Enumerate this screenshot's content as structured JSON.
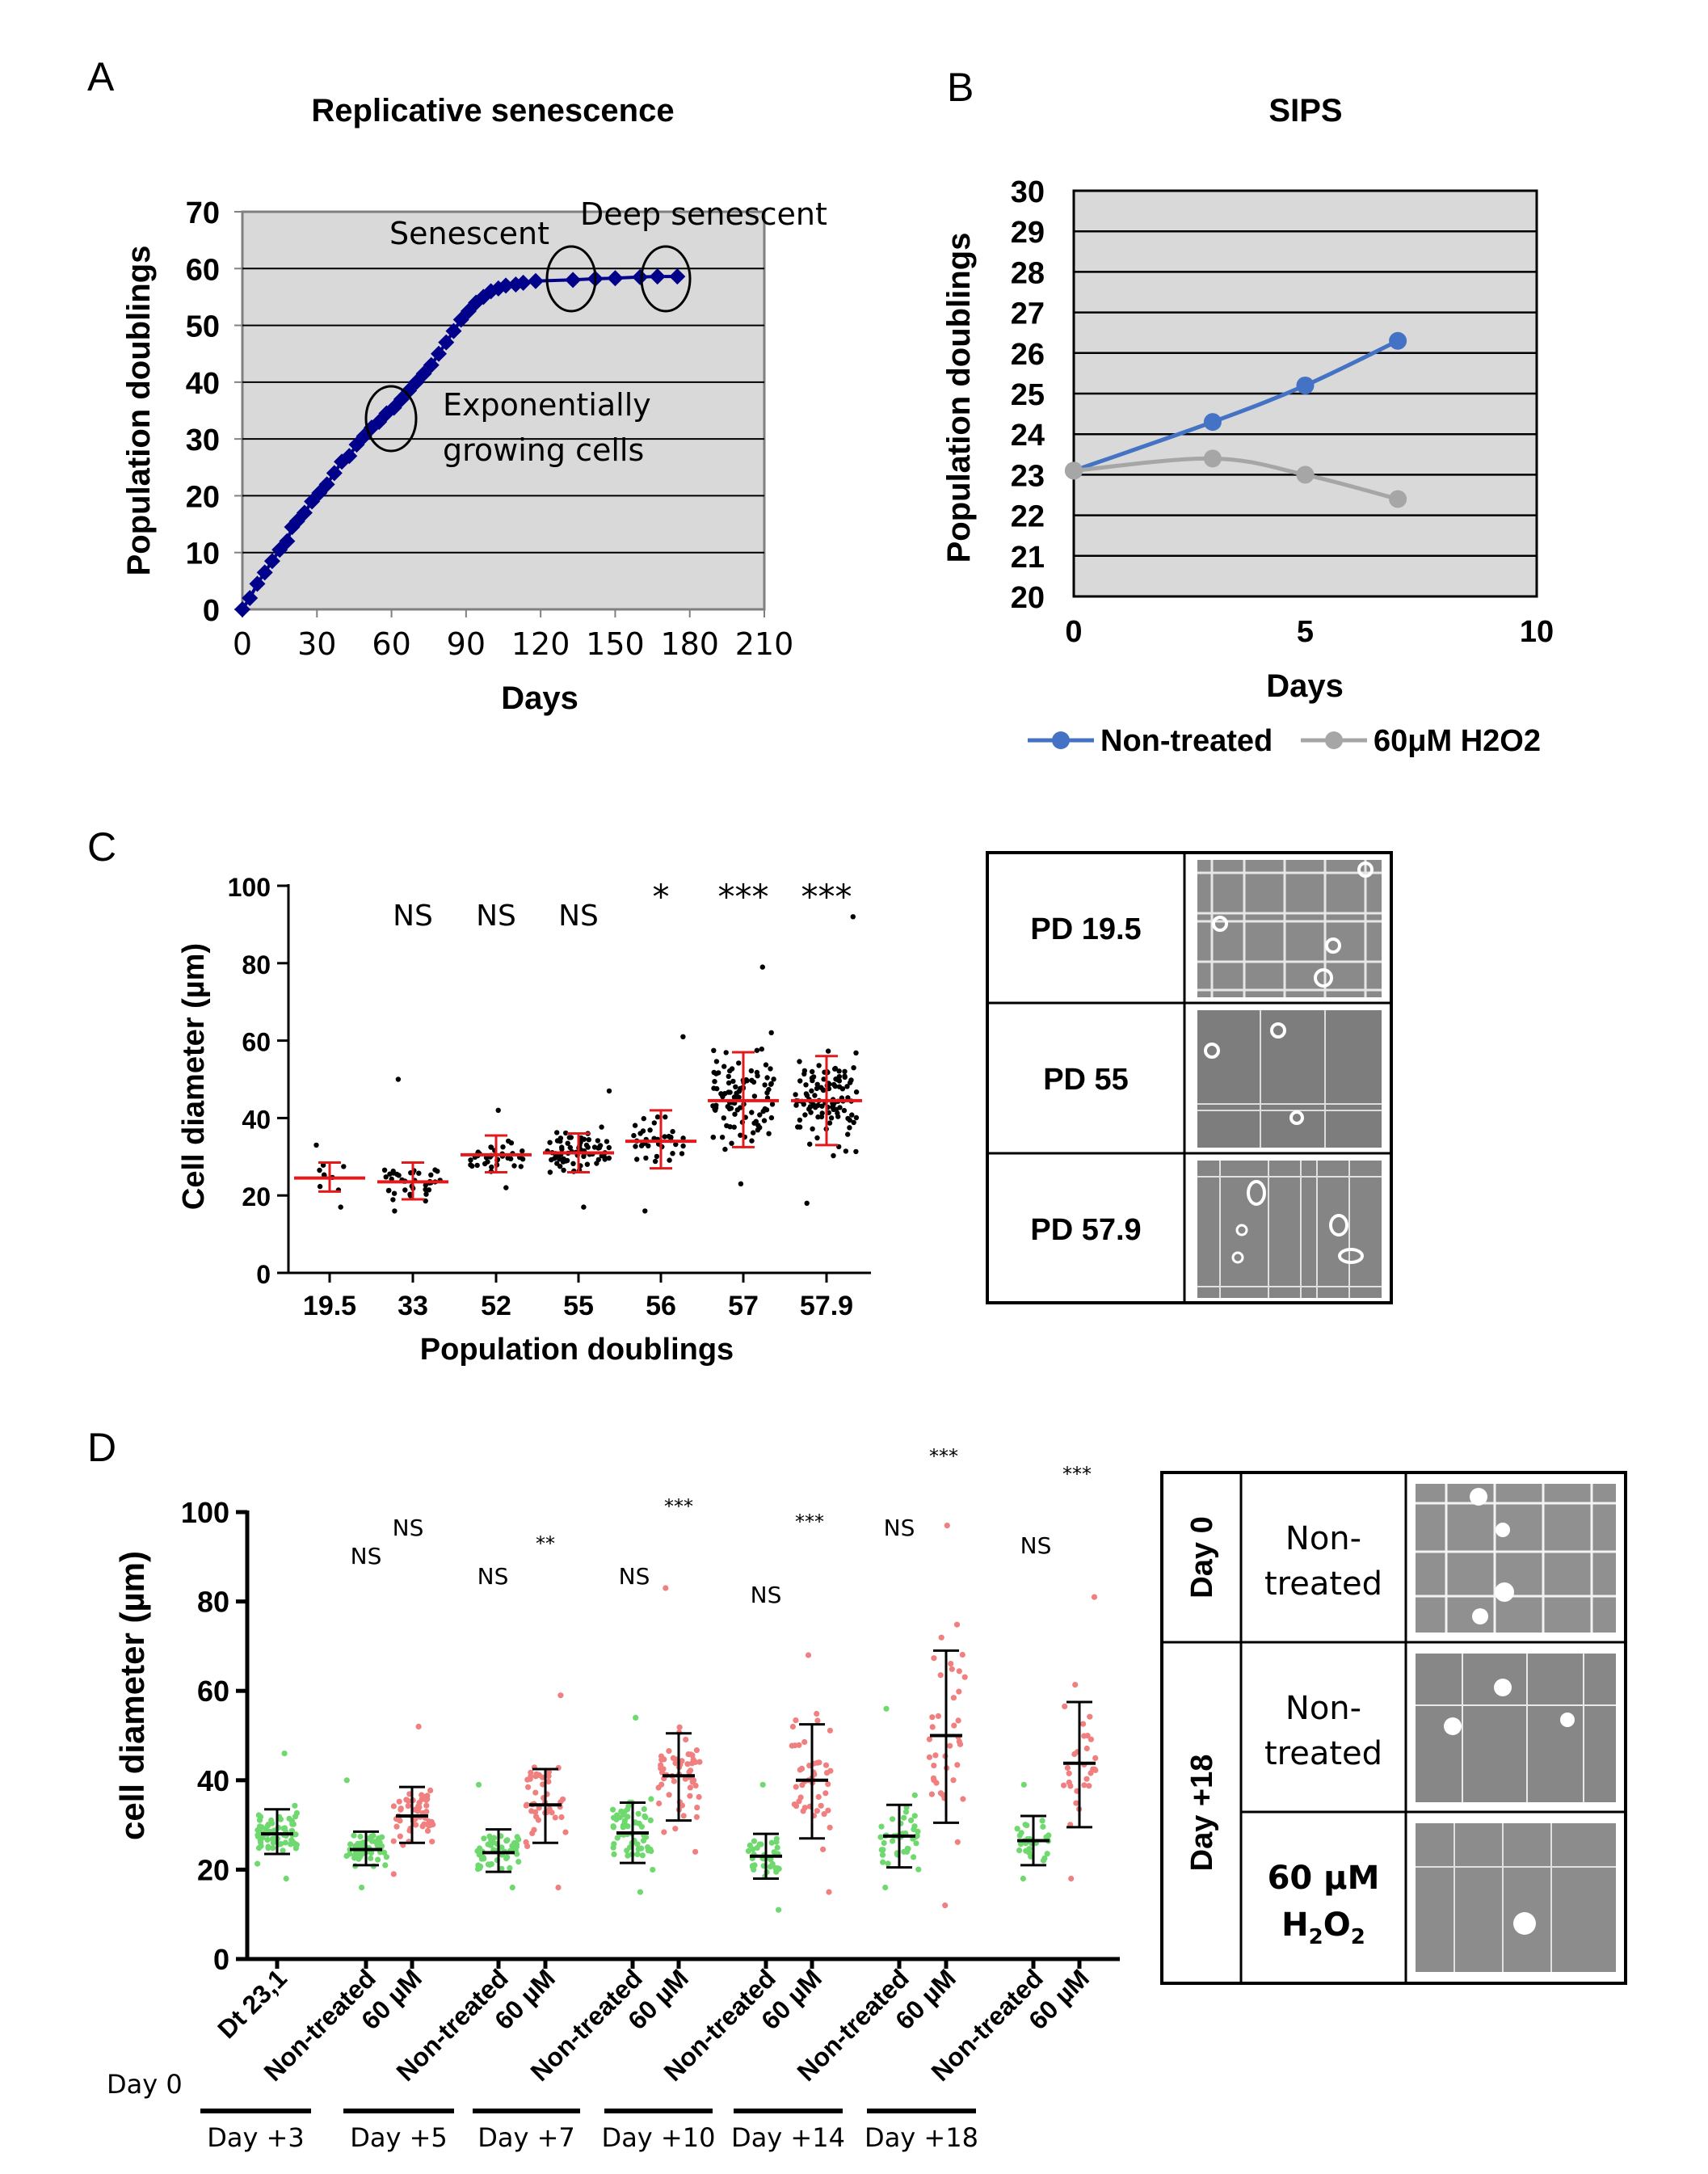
{
  "colors": {
    "plot_bg": "#d9d9d9",
    "navy": "#00008b",
    "blue": "#4472c4",
    "gray": "#a6a6a6",
    "red": "#e31a1c",
    "pink": "#f08080",
    "green": "#6fd96f",
    "black": "#000000"
  },
  "panel_letters": [
    "A",
    "B",
    "C",
    "D"
  ],
  "chart_data": [
    {
      "panel": "A",
      "type": "line",
      "title": "Replicative senescence",
      "xlabel": "Days",
      "ylabel": "Population doublings",
      "xlim": [
        0,
        210
      ],
      "ylim": [
        0,
        70
      ],
      "xticks": [
        "0",
        "30",
        "60",
        "90",
        "120",
        "150",
        "180",
        "210"
      ],
      "yticks": [
        "0",
        "10",
        "20",
        "30",
        "40",
        "50",
        "60",
        "70"
      ],
      "grid": "horizontal",
      "series": [
        {
          "x": [
            0,
            3,
            6,
            9,
            12,
            15,
            18,
            20,
            22,
            25,
            28,
            31,
            34,
            37,
            40,
            43,
            46,
            49,
            52,
            55,
            58,
            61,
            64,
            67,
            70,
            73,
            76,
            79,
            82,
            85,
            88,
            91,
            94,
            97,
            100,
            103,
            106,
            110,
            113,
            118,
            133,
            142,
            150,
            160,
            167,
            175
          ],
          "y": [
            0,
            2,
            4.5,
            6.5,
            8.5,
            10.5,
            12,
            14.5,
            15.5,
            17,
            19,
            20.5,
            22,
            24,
            26,
            27,
            29,
            30.5,
            32,
            33,
            34.5,
            35.5,
            37,
            38.5,
            40,
            41.5,
            43,
            45,
            47,
            49,
            51,
            52.5,
            54,
            55,
            56,
            56.5,
            57,
            57.2,
            57.5,
            57.8,
            58,
            58.2,
            58.3,
            58.5,
            58.6,
            58.6
          ]
        }
      ],
      "annotations": [
        "Senescent",
        "Deep senescent",
        "Exponentially",
        "growing cells"
      ]
    },
    {
      "panel": "B",
      "type": "line",
      "title": "SIPS",
      "xlabel": "Days",
      "ylabel": "Population doublings",
      "xlim": [
        0,
        10
      ],
      "ylim": [
        20,
        30
      ],
      "xticks": [
        "0",
        "5",
        "10"
      ],
      "yticks": [
        "20",
        "21",
        "22",
        "23",
        "24",
        "25",
        "26",
        "27",
        "28",
        "29",
        "30"
      ],
      "grid": "horizontal",
      "legend": "bottom",
      "series": [
        {
          "name": "Non-treated",
          "x": [
            0,
            3,
            5,
            7
          ],
          "y": [
            23.1,
            24.3,
            25.2,
            26.3
          ]
        },
        {
          "name": "60μM H2O2",
          "x": [
            0,
            3,
            5,
            7
          ],
          "y": [
            23.1,
            23.4,
            23.0,
            22.4
          ]
        }
      ]
    },
    {
      "panel": "C",
      "type": "scatter",
      "xlabel": "Population doublings",
      "ylabel": "Cell diameter (µm)",
      "ylim": [
        0,
        100
      ],
      "yticks": [
        "0",
        "20",
        "40",
        "60",
        "80",
        "100"
      ],
      "categories": [
        "19.5",
        "33",
        "52",
        "55",
        "56",
        "57",
        "57.9"
      ],
      "mean": [
        24.5,
        23.5,
        30.5,
        31,
        34,
        44.5,
        44.5
      ],
      "sd_low": [
        21,
        19,
        26,
        26,
        27,
        32.5,
        33
      ],
      "sd_high": [
        28.5,
        28.5,
        35.5,
        36,
        42,
        57,
        56
      ],
      "n": [
        10,
        40,
        38,
        72,
        38,
        100,
        110
      ],
      "min": [
        17,
        16,
        22,
        17,
        16,
        23,
        18
      ],
      "max": [
        33,
        50,
        42,
        47,
        61,
        79,
        92
      ],
      "significance": [
        "",
        "NS",
        "NS",
        "NS",
        "*",
        "***",
        "***"
      ]
    },
    {
      "panel": "D",
      "type": "scatter",
      "ylabel": "cell diameter (µm)",
      "ylim": [
        0,
        100
      ],
      "yticks": [
        "0",
        "20",
        "40",
        "60",
        "80",
        "100"
      ],
      "categories": [
        "Dt 23,1",
        "Non-treated",
        "60 µM",
        "Non-treated",
        "60 µM",
        "Non-treated",
        "60 µM",
        "Non-treated",
        "60 µM",
        "Non-treated",
        "60 µM",
        "Non-treated",
        "60 µM"
      ],
      "groups": [
        "Day 0",
        "Day +3",
        "Day +5",
        "Day +7",
        "Day +10",
        "Day +14",
        "Day +18"
      ],
      "mean": [
        28,
        24.5,
        32,
        23.8,
        34.5,
        28.2,
        41,
        23,
        40,
        27.5,
        50,
        26.5,
        43.8
      ],
      "sd_low": [
        23.5,
        21,
        26,
        19.5,
        26,
        21.5,
        31,
        18,
        27,
        20.5,
        30.5,
        21,
        29.5
      ],
      "sd_high": [
        33.5,
        28.5,
        38.5,
        29,
        42.5,
        35,
        50.5,
        28,
        52.5,
        34.5,
        69,
        32,
        57.5
      ],
      "n": [
        70,
        55,
        55,
        55,
        45,
        60,
        55,
        35,
        45,
        45,
        40,
        30,
        30
      ],
      "min": [
        18,
        16,
        19,
        16,
        16,
        15,
        24,
        11,
        15,
        16,
        12,
        18,
        18
      ],
      "max": [
        46,
        40,
        52,
        39,
        59,
        54,
        83,
        39,
        68,
        56,
        97,
        39,
        81
      ],
      "significance": [
        "",
        "NS",
        "NS",
        "NS",
        "**",
        "NS",
        "***",
        "NS",
        "***",
        "NS",
        "***",
        "NS",
        "***"
      ]
    }
  ],
  "panel_c_images": {
    "labels": [
      "PD 19.5",
      "PD 55",
      "PD 57.9"
    ]
  },
  "panel_d_images": {
    "day0": "Day 0",
    "day18": "Day +18",
    "nontreated_1": "Non-",
    "nontreated_2": "treated",
    "treated_1": "60 µM",
    "treated_2": "H",
    "treated_sub1": "2",
    "treated_mid": "O",
    "treated_sub2": "2"
  }
}
